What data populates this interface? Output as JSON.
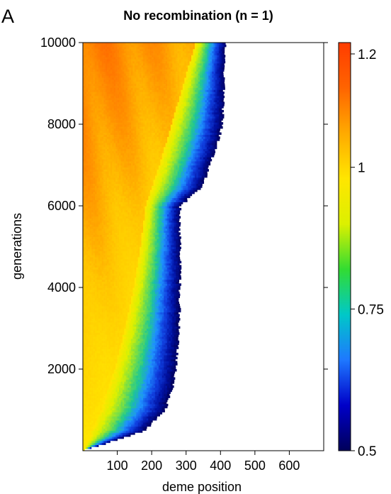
{
  "panel_label": "A",
  "chart_data": {
    "type": "heatmap",
    "title": "No recombination (n = 1)",
    "xlabel": "deme position",
    "ylabel": "generations",
    "xlim": [
      0,
      700
    ],
    "ylim": [
      0,
      10000
    ],
    "xticks": [
      100,
      200,
      300,
      400,
      500,
      600
    ],
    "xtick_labels": [
      "100",
      "200",
      "300",
      "400",
      "500",
      "600"
    ],
    "yticks": [
      2000,
      4000,
      6000,
      8000,
      10000
    ],
    "ytick_labels": [
      "2000",
      "4000",
      "6000",
      "8000",
      "10000"
    ],
    "colorbar": {
      "min": 0.5,
      "max": 1.22,
      "ticks": [
        0.5,
        0.75,
        1,
        1.2
      ],
      "tick_labels": [
        "0.5",
        "0.75",
        "1",
        "1.2"
      ],
      "colors": [
        "#00005a",
        "#0000c8",
        "#1e78ff",
        "#00c8c8",
        "#32dc32",
        "#dcf000",
        "#ffe600",
        "#ffaa00",
        "#ff6400",
        "#ff3c00"
      ]
    },
    "front": {
      "generations": [
        0,
        500,
        1000,
        1500,
        2000,
        2500,
        3000,
        3500,
        4000,
        4500,
        5000,
        5500,
        6000,
        6500,
        7000,
        7500,
        8000,
        8500,
        9000,
        9500,
        10000
      ],
      "position": [
        0,
        180,
        238,
        260,
        270,
        276,
        280,
        281,
        282,
        282,
        282,
        282,
        283,
        350,
        368,
        390,
        405,
        408,
        410,
        412,
        415
      ]
    },
    "gradient_band": {
      "generations": [
        0,
        1000,
        2000,
        3000,
        4000,
        5000,
        6000,
        7000,
        8000,
        9000,
        10000
      ],
      "yellow_edge": [
        0,
        50,
        90,
        120,
        145,
        165,
        180,
        220,
        255,
        290,
        325
      ]
    }
  }
}
